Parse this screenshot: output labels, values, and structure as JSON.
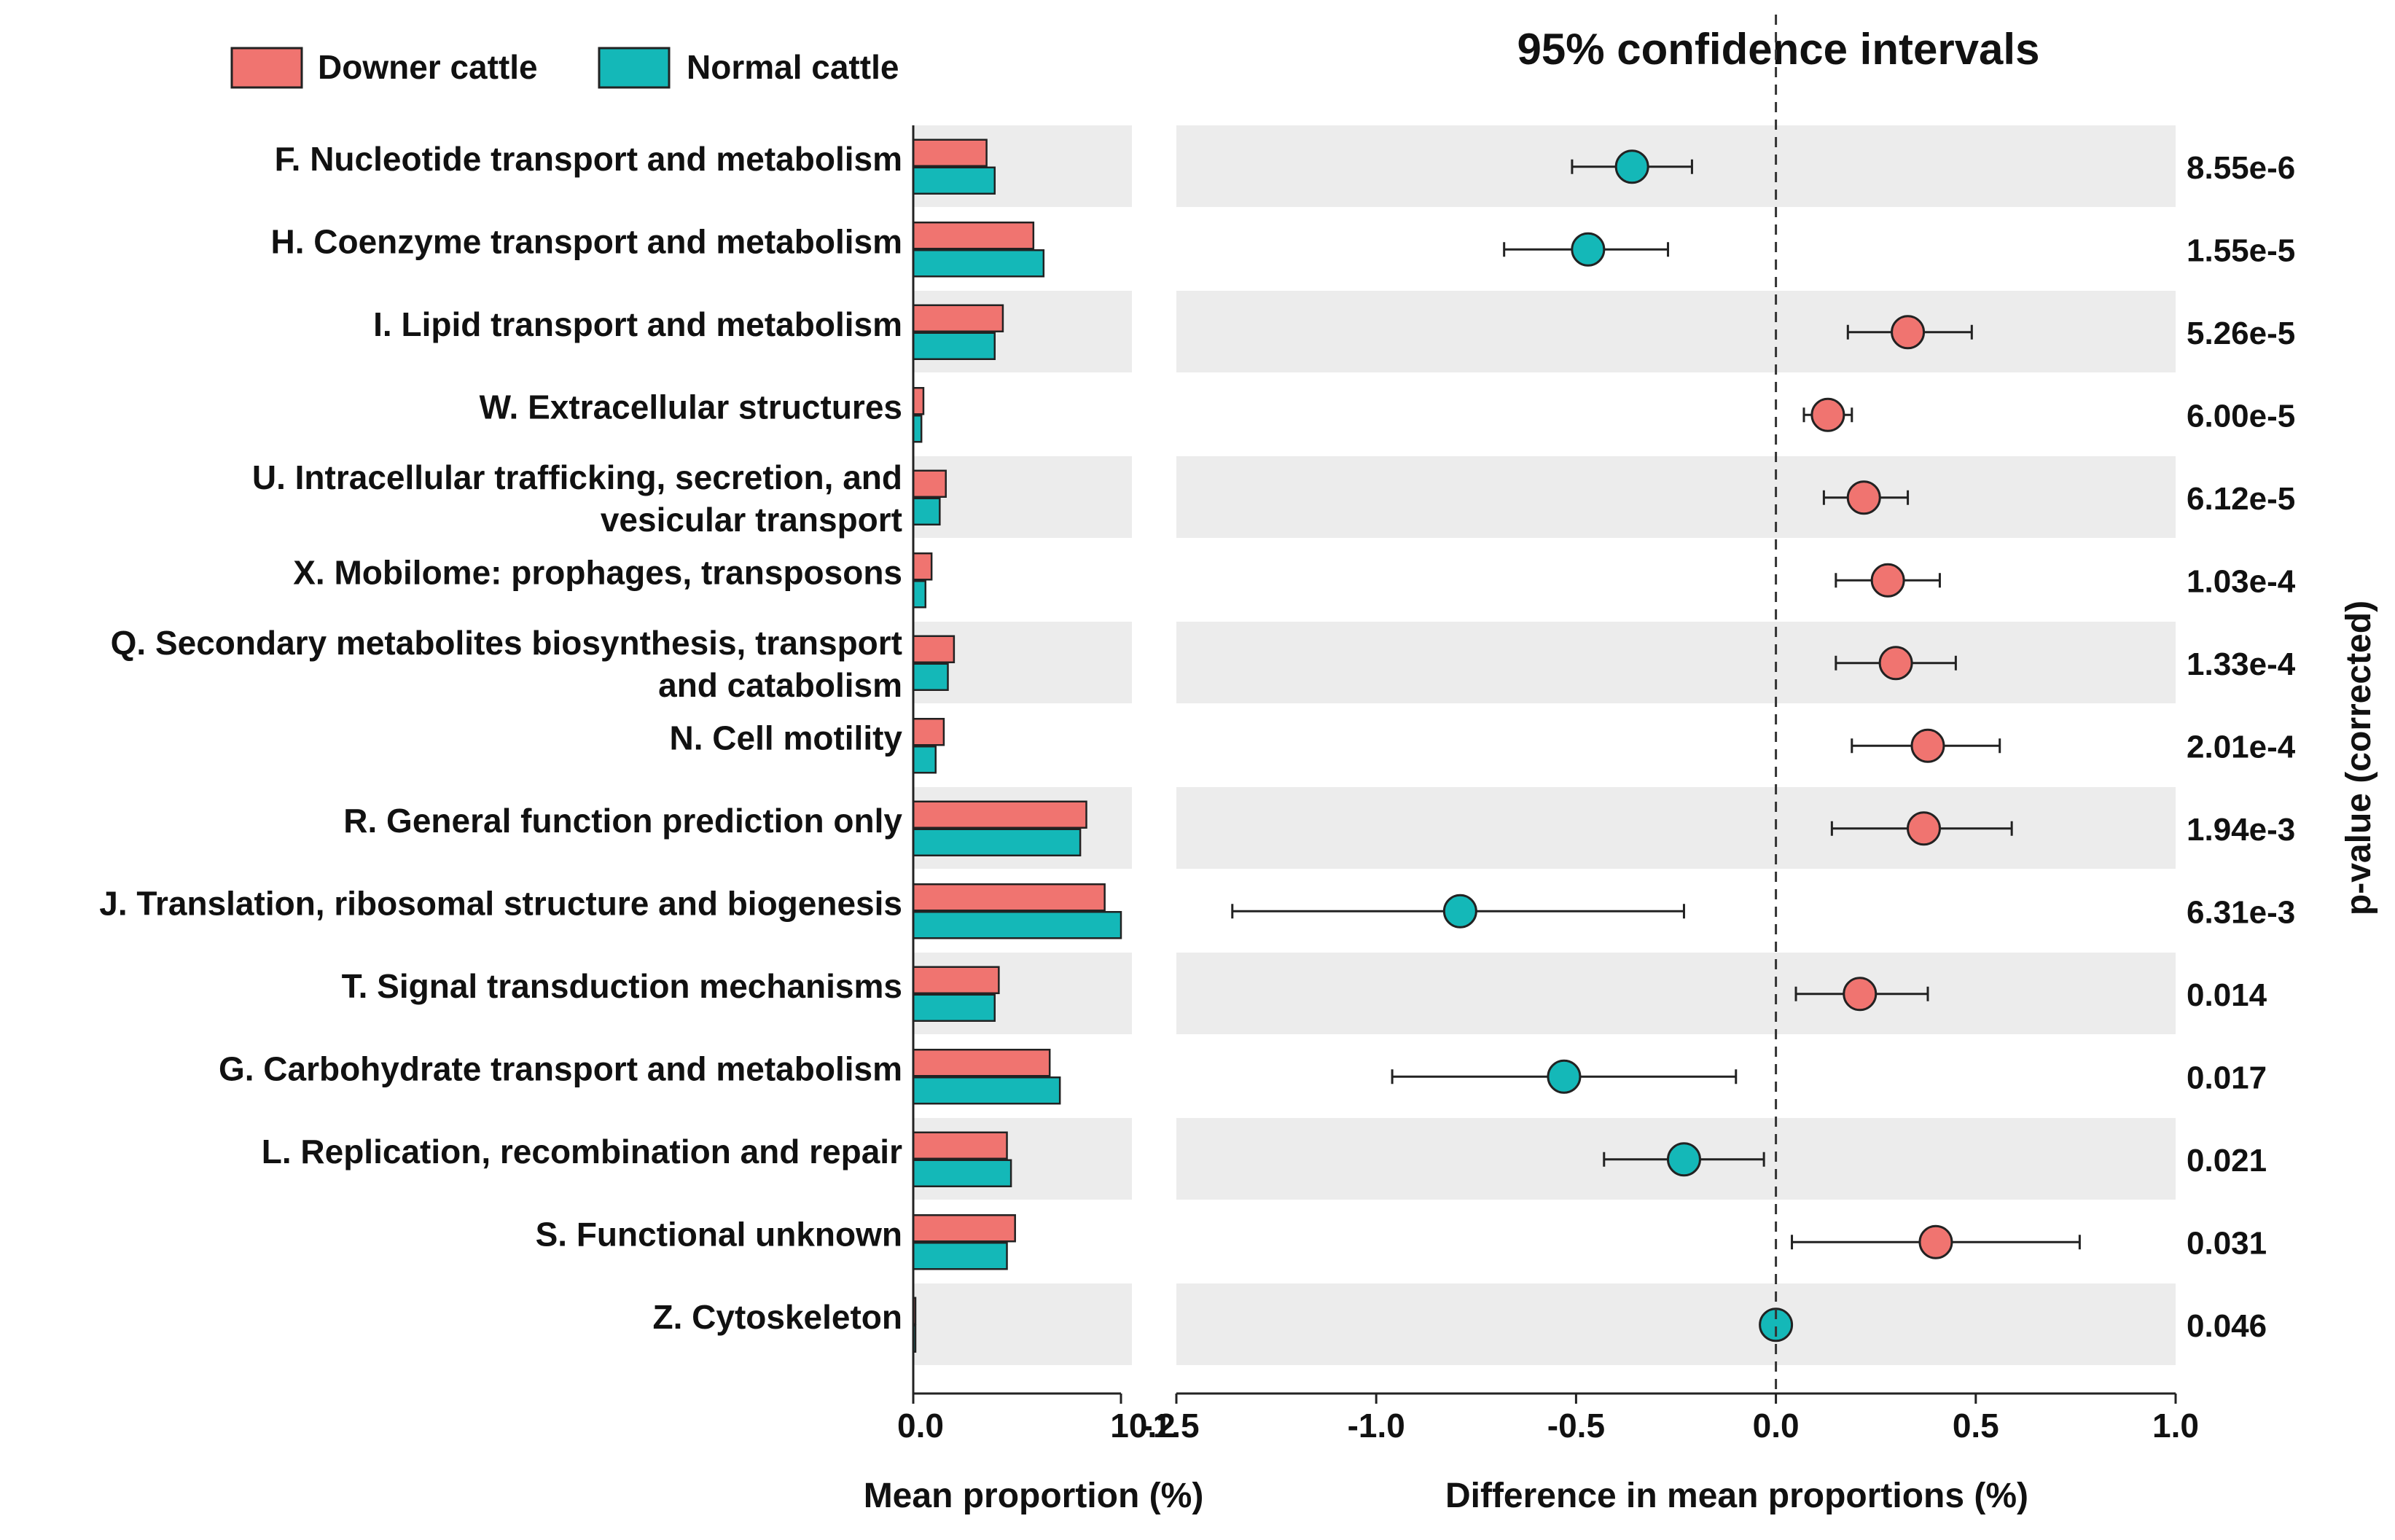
{
  "chart_data": {
    "type": "extended_error_bar",
    "title": "95% confidence intervals",
    "legend": [
      {
        "name": "Downer cattle",
        "color": "#f07470"
      },
      {
        "name": "Normal cattle",
        "color": "#14b8b8"
      }
    ],
    "left_panel": {
      "xlabel": "Mean proportion (%)",
      "xlim": [
        0.0,
        10.2
      ],
      "tick_labels": [
        "0.0",
        "10.2"
      ]
    },
    "right_panel": {
      "xlabel": "Difference in mean proportions (%)",
      "xlim": [
        -1.5,
        1.0
      ],
      "ticks": [
        -1.5,
        -1.0,
        -0.5,
        0.0,
        0.5,
        1.0
      ],
      "tick_labels": [
        "-1.5",
        "-1.0",
        "-0.5",
        "0.0",
        "0.5",
        "1.0"
      ]
    },
    "pvalue_label": "p-value (corrected)",
    "categories": [
      {
        "label": [
          "F. Nucleotide transport and metabolism"
        ],
        "downer": 3.6,
        "normal": 4.0,
        "diff": -0.36,
        "ci_low": -0.51,
        "ci_high": -0.21,
        "group": "normal",
        "p": "8.55e-6"
      },
      {
        "label": [
          "H. Coenzyme transport and metabolism"
        ],
        "downer": 5.9,
        "normal": 6.4,
        "diff": -0.47,
        "ci_low": -0.68,
        "ci_high": -0.27,
        "group": "normal",
        "p": "1.55e-5"
      },
      {
        "label": [
          "I. Lipid transport and metabolism"
        ],
        "downer": 4.4,
        "normal": 4.0,
        "diff": 0.33,
        "ci_low": 0.18,
        "ci_high": 0.49,
        "group": "downer",
        "p": "5.26e-5"
      },
      {
        "label": [
          "W. Extracellular structures"
        ],
        "downer": 0.5,
        "normal": 0.4,
        "diff": 0.13,
        "ci_low": 0.07,
        "ci_high": 0.19,
        "group": "downer",
        "p": "6.00e-5"
      },
      {
        "label": [
          "U. Intracellular trafficking, secretion, and",
          "vesicular transport"
        ],
        "downer": 1.6,
        "normal": 1.3,
        "diff": 0.22,
        "ci_low": 0.12,
        "ci_high": 0.33,
        "group": "downer",
        "p": "6.12e-5"
      },
      {
        "label": [
          "X. Mobilome: prophages, transposons"
        ],
        "downer": 0.9,
        "normal": 0.6,
        "diff": 0.28,
        "ci_low": 0.15,
        "ci_high": 0.41,
        "group": "downer",
        "p": "1.03e-4"
      },
      {
        "label": [
          "Q. Secondary metabolites biosynthesis, transport",
          "and catabolism"
        ],
        "downer": 2.0,
        "normal": 1.7,
        "diff": 0.3,
        "ci_low": 0.15,
        "ci_high": 0.45,
        "group": "downer",
        "p": "1.33e-4"
      },
      {
        "label": [
          "N. Cell motility"
        ],
        "downer": 1.5,
        "normal": 1.1,
        "diff": 0.38,
        "ci_low": 0.19,
        "ci_high": 0.56,
        "group": "downer",
        "p": "2.01e-4"
      },
      {
        "label": [
          "R. General function prediction only"
        ],
        "downer": 8.5,
        "normal": 8.2,
        "diff": 0.37,
        "ci_low": 0.14,
        "ci_high": 0.59,
        "group": "downer",
        "p": "1.94e-3"
      },
      {
        "label": [
          "J. Translation, ribosomal structure and biogenesis"
        ],
        "downer": 9.4,
        "normal": 10.2,
        "diff": -0.79,
        "ci_low": -1.36,
        "ci_high": -0.23,
        "group": "normal",
        "p": "6.31e-3"
      },
      {
        "label": [
          "T. Signal transduction mechanisms"
        ],
        "downer": 4.2,
        "normal": 4.0,
        "diff": 0.21,
        "ci_low": 0.05,
        "ci_high": 0.38,
        "group": "downer",
        "p": "0.014"
      },
      {
        "label": [
          "G. Carbohydrate transport and metabolism"
        ],
        "downer": 6.7,
        "normal": 7.2,
        "diff": -0.53,
        "ci_low": -0.96,
        "ci_high": -0.1,
        "group": "normal",
        "p": "0.017"
      },
      {
        "label": [
          "L. Replication, recombination and repair"
        ],
        "downer": 4.6,
        "normal": 4.8,
        "diff": -0.23,
        "ci_low": -0.43,
        "ci_high": -0.03,
        "group": "normal",
        "p": "0.021"
      },
      {
        "label": [
          "S. Functional unknown"
        ],
        "downer": 5.0,
        "normal": 4.6,
        "diff": 0.4,
        "ci_low": 0.04,
        "ci_high": 0.76,
        "group": "downer",
        "p": "0.031"
      },
      {
        "label": [
          "Z. Cytoskeleton"
        ],
        "downer": 0.05,
        "normal": 0.05,
        "diff": 0.0,
        "ci_low": 0.0,
        "ci_high": 0.0,
        "group": "normal",
        "p": "0.046"
      }
    ]
  }
}
